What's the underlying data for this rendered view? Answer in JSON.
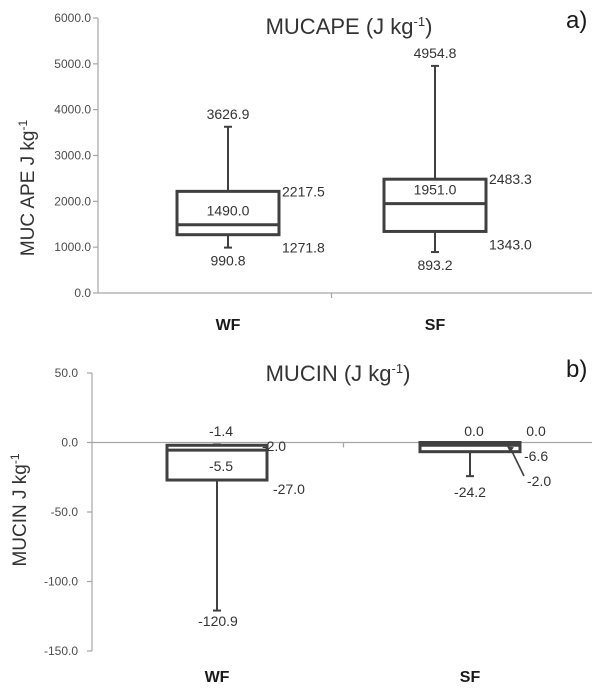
{
  "chart_data": [
    {
      "type": "box",
      "panel_label": "a)",
      "title": "MUCAPE (J kg",
      "title_sup": "-1",
      "title_close": ")",
      "ylabel": "MUC APE J kg",
      "ylabel_sup": "-1",
      "ylim": [
        0,
        6000
      ],
      "yticks": [
        "0.0",
        "1000.0",
        "2000.0",
        "3000.0",
        "4000.0",
        "5000.0",
        "6000.0"
      ],
      "categories": [
        "WF",
        "SF"
      ],
      "boxes": [
        {
          "category": "WF",
          "min": 990.8,
          "q1": 1271.8,
          "median": 1490.0,
          "q3": 2217.5,
          "max": 3626.9,
          "labels": {
            "min": "990.8",
            "q1": "1271.8",
            "median": "1490.0",
            "q3": "2217.5",
            "max": "3626.9"
          }
        },
        {
          "category": "SF",
          "min": 893.2,
          "q1": 1343.0,
          "median": 1951.0,
          "q3": 2483.3,
          "max": 4954.8,
          "labels": {
            "min": "893.2",
            "q1": "1343.0",
            "median": "1951.0",
            "q3": "2483.3",
            "max": "4954.8"
          }
        }
      ]
    },
    {
      "type": "box",
      "panel_label": "b)",
      "title": "MUCIN (J kg",
      "title_sup": "-1",
      "title_close": ")",
      "ylabel": "MUCIN J kg",
      "ylabel_sup": "-1",
      "ylim": [
        -150,
        50
      ],
      "yticks": [
        "-150.0",
        "-100.0",
        "-50.0",
        "0.0",
        "50.0"
      ],
      "categories": [
        "WF",
        "SF"
      ],
      "boxes": [
        {
          "category": "WF",
          "min": -120.9,
          "q1": -27.0,
          "median": -5.5,
          "q3": -2.0,
          "max": -1.4,
          "labels": {
            "min": "-120.9",
            "q1": "-27.0",
            "median": "-5.5",
            "q3": "-2.0",
            "max": "-1.4"
          }
        },
        {
          "category": "SF",
          "min": -24.2,
          "q1": -6.6,
          "median": -2.0,
          "q3": 0.0,
          "max": 0.0,
          "labels": {
            "min": "-24.2",
            "q1": "-6.6",
            "median": "-2.0",
            "q3": "0.0",
            "max": "0.0"
          }
        }
      ]
    }
  ]
}
